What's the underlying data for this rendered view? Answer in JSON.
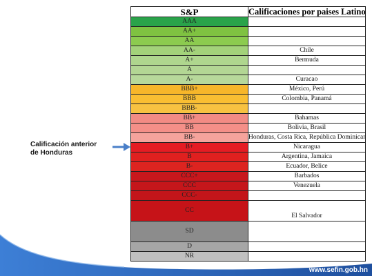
{
  "table": {
    "header_rating": "S&P",
    "header_countries": "Calificaciones por paises Latinoamericanos",
    "rows": [
      {
        "rating": "AAA",
        "countries": "",
        "color": "#2aa34a"
      },
      {
        "rating": "AA+",
        "countries": "",
        "color": "#7fc241"
      },
      {
        "rating": "AA",
        "countries": "",
        "color": "#8ccb4f"
      },
      {
        "rating": "AA-",
        "countries": "Chile",
        "color": "#a3d27a"
      },
      {
        "rating": "A+",
        "countries": "Bermuda",
        "color": "#afd68e"
      },
      {
        "rating": "A",
        "countries": "",
        "color": "#b3d694"
      },
      {
        "rating": "A-",
        "countries": "Curacao",
        "color": "#b7d89a"
      },
      {
        "rating": "BBB+",
        "countries": "México, Perú",
        "color": "#f7b62a"
      },
      {
        "rating": "BBB",
        "countries": "Colombia, Panamá",
        "color": "#f9be32"
      },
      {
        "rating": "BBB-",
        "countries": "",
        "color": "#f7c241"
      },
      {
        "rating": "BB+",
        "countries": "Bahamas",
        "color": "#f28b84"
      },
      {
        "rating": "BB",
        "countries": "Bolivia, Brasil",
        "color": "#f48f88"
      },
      {
        "rating": "BB-",
        "countries": "Honduras, Costa Rica, República Dominicana",
        "color": "#f5a39c"
      },
      {
        "rating": "B+",
        "countries": "Nicaragua",
        "color": "#e51c23"
      },
      {
        "rating": "B",
        "countries": "Argentina, Jamaica",
        "color": "#e0201f"
      },
      {
        "rating": "B-",
        "countries": "Ecuador, Belice",
        "color": "#dd2420"
      },
      {
        "rating": "CCC+",
        "countries": "Barbados",
        "color": "#c8171c"
      },
      {
        "rating": "CCC",
        "countries": "Venezuela",
        "color": "#c5161b"
      },
      {
        "rating": "CCC-",
        "countries": "",
        "color": "#c3151a"
      },
      {
        "rating": "CC",
        "countries": "El Salvador",
        "color": "#c61318",
        "tall": true
      },
      {
        "rating": "SD",
        "countries": "",
        "color": "#8c8c8c",
        "tall": true
      },
      {
        "rating": "D",
        "countries": "",
        "color": "#a6a6a6"
      },
      {
        "rating": "NR",
        "countries": "",
        "color": "#c0c0c0"
      }
    ]
  },
  "annotation": {
    "line1": "Calificación anterior",
    "line2": "de Honduras",
    "arrow_color": "#4a7fc8"
  },
  "footer": {
    "website": "www.sefin.gob.hn",
    "wave_color": "#1e4f9e",
    "wave_highlight": "#3d7fd6"
  }
}
